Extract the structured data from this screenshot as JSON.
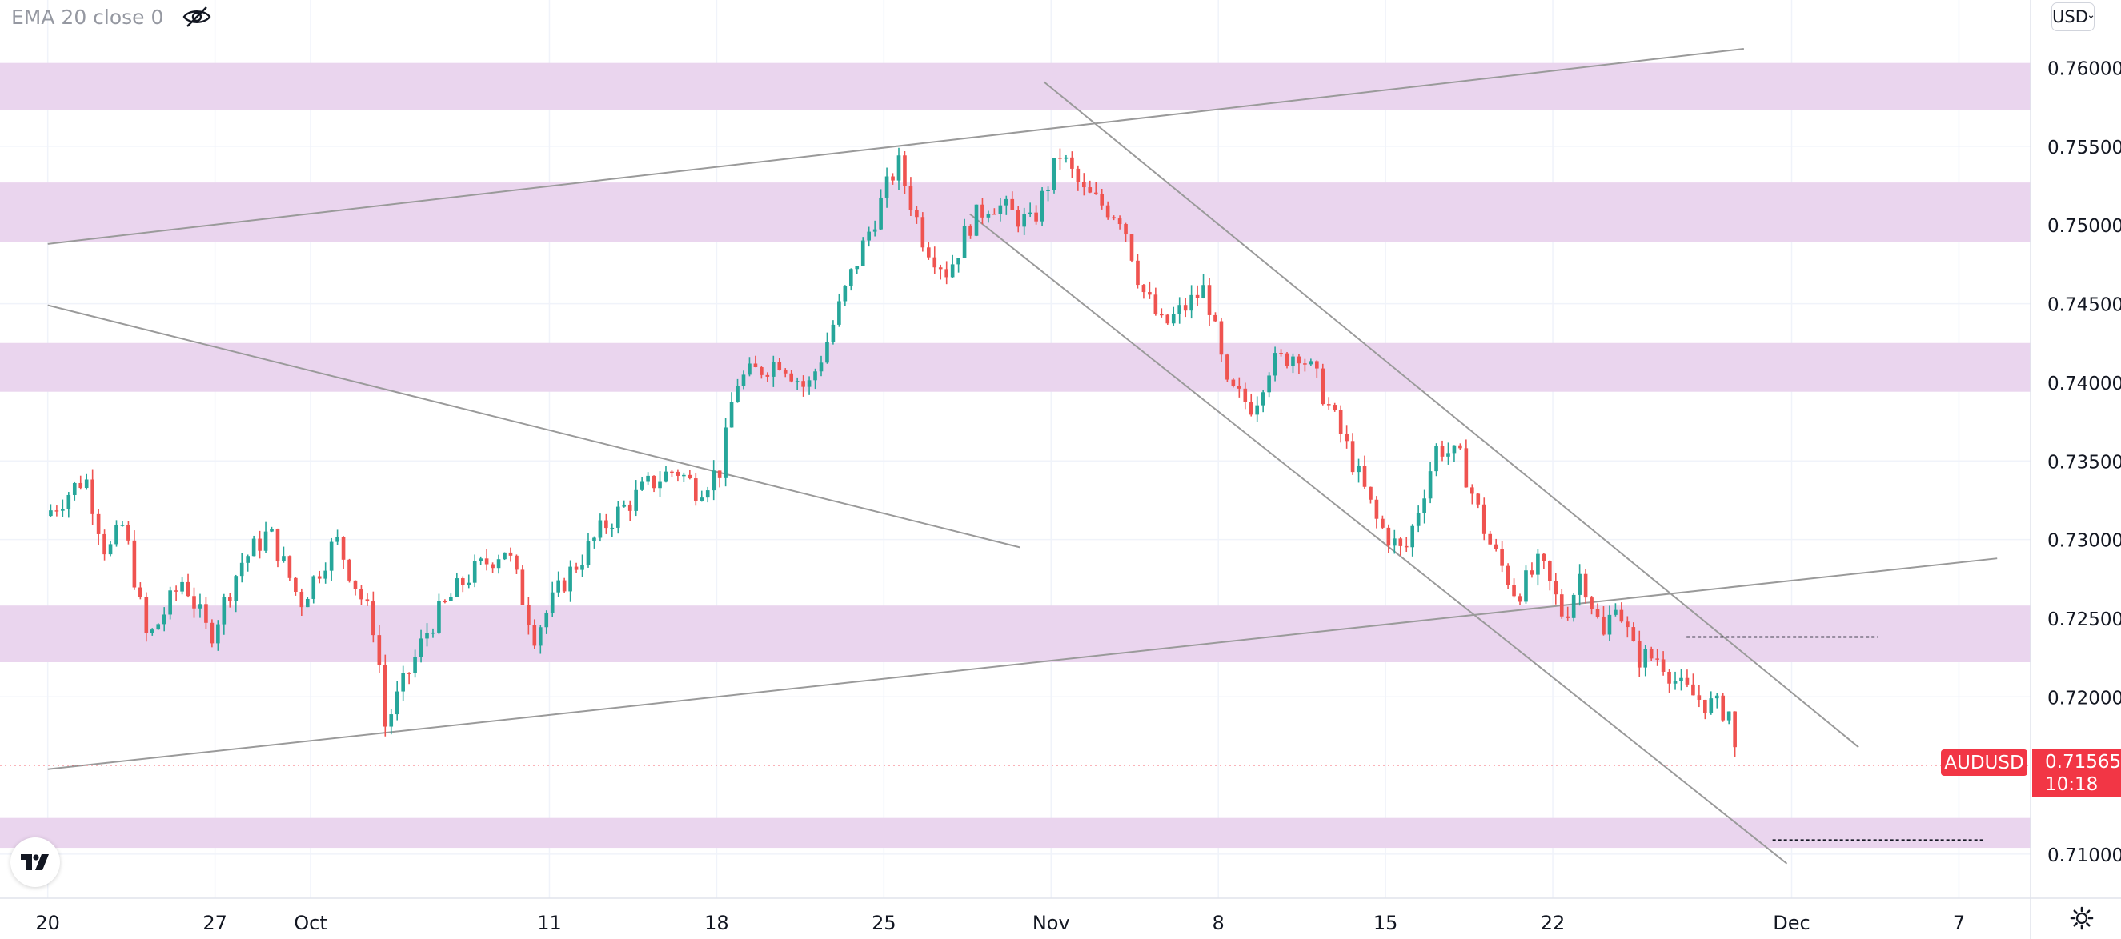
{
  "legend": {
    "indicator_label": "EMA 20 close 0"
  },
  "currency_selector": {
    "label": "USD"
  },
  "symbol": {
    "name": "AUDUSD",
    "last_price": "0.71565",
    "countdown": "10:18"
  },
  "colors": {
    "up": "#26a69a",
    "down": "#ef5350",
    "zone": "#ead5ee",
    "trendline": "#9a9a9a",
    "price_tag": "#f23645"
  },
  "icons": [
    "eye-off-icon",
    "tradingview-logo-icon",
    "settings-gear-icon",
    "chevron-down-icon"
  ],
  "chart_data": {
    "type": "candlestick",
    "symbol": "AUDUSD",
    "interval_note": "intraday candles, mid-September to late November",
    "x_tick_labels": [
      "20",
      "27",
      "Oct",
      "11",
      "18",
      "25",
      "Nov",
      "8",
      "15",
      "22",
      "Dec",
      "7"
    ],
    "y_tick_labels": [
      "0.76000",
      "0.75500",
      "0.75000",
      "0.74500",
      "0.74000",
      "0.73500",
      "0.73000",
      "0.72500",
      "0.72000",
      "0.71000"
    ],
    "ylim": [
      0.7072,
      0.7643
    ],
    "xlim_days": [
      -2,
      83
    ],
    "y_scale": "linear",
    "grid": true,
    "last_price": 0.71565,
    "zones": [
      {
        "low": 0.7573,
        "high": 0.7603
      },
      {
        "low": 0.7489,
        "high": 0.7527
      },
      {
        "low": 0.7394,
        "high": 0.7425
      },
      {
        "low": 0.7222,
        "high": 0.7258
      },
      {
        "low": 0.7104,
        "high": 0.7123
      }
    ],
    "trendlines": [
      {
        "from": [
          0,
          0.7488
        ],
        "to": [
          71,
          0.7612
        ]
      },
      {
        "from": [
          0,
          0.7449
        ],
        "to": [
          40.7,
          0.7295
        ]
      },
      {
        "from": [
          0,
          0.7154
        ],
        "to": [
          81.6,
          0.7288
        ]
      },
      {
        "from": [
          41.7,
          0.7591
        ],
        "to": [
          75.8,
          0.7168
        ]
      },
      {
        "from": [
          38.6,
          0.7507
        ],
        "to": [
          72.8,
          0.7094
        ]
      }
    ],
    "dashed_levels": [
      {
        "from": 68.6,
        "to": 76.6,
        "y": 0.7238
      },
      {
        "from": 72.2,
        "to": 81,
        "y": 0.7109
      }
    ],
    "waypoints": [
      [
        0,
        0.7315
      ],
      [
        1.7,
        0.734
      ],
      [
        2.6,
        0.729
      ],
      [
        3.3,
        0.731
      ],
      [
        4.3,
        0.7235
      ],
      [
        5.8,
        0.7275
      ],
      [
        6.9,
        0.7238
      ],
      [
        8.2,
        0.7285
      ],
      [
        9.4,
        0.7305
      ],
      [
        10.7,
        0.726
      ],
      [
        12.2,
        0.73
      ],
      [
        13.9,
        0.724
      ],
      [
        14.2,
        0.718
      ],
      [
        16.1,
        0.7245
      ],
      [
        17.6,
        0.7275
      ],
      [
        19.3,
        0.7295
      ],
      [
        20.5,
        0.724
      ],
      [
        21.8,
        0.7275
      ],
      [
        23.5,
        0.731
      ],
      [
        25.3,
        0.7335
      ],
      [
        26.4,
        0.7345
      ],
      [
        27.3,
        0.7332
      ],
      [
        28.3,
        0.7345
      ],
      [
        28.9,
        0.74
      ],
      [
        30.8,
        0.7415
      ],
      [
        31.9,
        0.7395
      ],
      [
        32.6,
        0.742
      ],
      [
        33.8,
        0.747
      ],
      [
        35.7,
        0.754
      ],
      [
        36.8,
        0.749
      ],
      [
        37.8,
        0.747
      ],
      [
        38.7,
        0.75
      ],
      [
        39.6,
        0.7515
      ],
      [
        41.3,
        0.75
      ],
      [
        42.5,
        0.7545
      ],
      [
        43.5,
        0.752
      ],
      [
        45.1,
        0.7505
      ],
      [
        45.9,
        0.746
      ],
      [
        46.8,
        0.7435
      ],
      [
        47.9,
        0.745
      ],
      [
        48.6,
        0.746
      ],
      [
        49.5,
        0.7395
      ],
      [
        50.6,
        0.7385
      ],
      [
        51.2,
        0.741
      ],
      [
        52.5,
        0.742
      ],
      [
        53.3,
        0.74
      ],
      [
        54.6,
        0.7355
      ],
      [
        55.8,
        0.731
      ],
      [
        56.9,
        0.729
      ],
      [
        58.3,
        0.736
      ],
      [
        59.3,
        0.735
      ],
      [
        60.4,
        0.73
      ],
      [
        61.6,
        0.7265
      ],
      [
        62.6,
        0.7285
      ],
      [
        63.6,
        0.725
      ],
      [
        64.3,
        0.728
      ],
      [
        65.3,
        0.7235
      ],
      [
        65.7,
        0.7265
      ],
      [
        66.6,
        0.7225
      ],
      [
        67.6,
        0.7225
      ],
      [
        68.5,
        0.7205
      ],
      [
        69.7,
        0.7195
      ],
      [
        70.6,
        0.719
      ],
      [
        70.8,
        0.71565
      ]
    ]
  }
}
